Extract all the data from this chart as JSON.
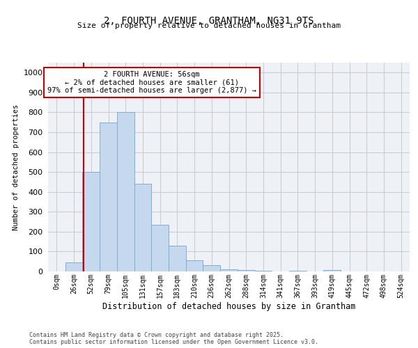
{
  "title_line1": "2, FOURTH AVENUE, GRANTHAM, NG31 9TS",
  "title_line2": "Size of property relative to detached houses in Grantham",
  "xlabel": "Distribution of detached houses by size in Grantham",
  "ylabel": "Number of detached properties",
  "bar_labels": [
    "0sqm",
    "26sqm",
    "52sqm",
    "79sqm",
    "105sqm",
    "131sqm",
    "157sqm",
    "183sqm",
    "210sqm",
    "236sqm",
    "262sqm",
    "288sqm",
    "314sqm",
    "341sqm",
    "367sqm",
    "393sqm",
    "419sqm",
    "445sqm",
    "472sqm",
    "498sqm",
    "524sqm"
  ],
  "bar_values": [
    0,
    45,
    500,
    750,
    800,
    440,
    235,
    130,
    55,
    30,
    12,
    8,
    5,
    0,
    5,
    0,
    7,
    0,
    0,
    0,
    0
  ],
  "bar_color": "#c5d8ed",
  "bar_edge_color": "#7bafd4",
  "grid_color": "#cccccc",
  "background_color": "#eef2f7",
  "red_line_x": 1.55,
  "annotation_text": "2 FOURTH AVENUE: 56sqm\n← 2% of detached houses are smaller (61)\n97% of semi-detached houses are larger (2,877) →",
  "annotation_box_color": "#ffffff",
  "annotation_box_edge": "#cc0000",
  "red_line_color": "#cc0000",
  "footer_line1": "Contains HM Land Registry data © Crown copyright and database right 2025.",
  "footer_line2": "Contains public sector information licensed under the Open Government Licence v3.0.",
  "ylim": [
    0,
    1050
  ],
  "yticks": [
    0,
    100,
    200,
    300,
    400,
    500,
    600,
    700,
    800,
    900,
    1000
  ]
}
